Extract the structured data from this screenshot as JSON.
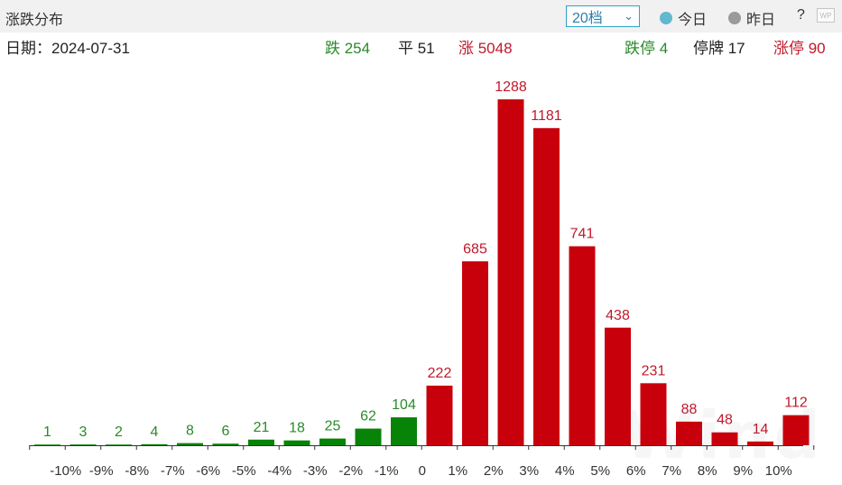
{
  "header": {
    "title": "涨跌分布",
    "grade_select": "20档",
    "radio_today": "今日",
    "radio_yesterday": "昨日",
    "help": "?",
    "wp_badge": "WP"
  },
  "stats": {
    "date": "日期：2024-07-31",
    "down": "跌 254",
    "flat": "平 51",
    "up": "涨 5048",
    "limit_down": "跌停 4",
    "halted": "停牌 17",
    "limit_up": "涨停 90"
  },
  "watermark": "Wind",
  "colors": {
    "down": "#078307",
    "up": "#c8000b",
    "down_label": "#2a8a2a",
    "up_label": "#c0192a"
  },
  "chart_data": {
    "type": "bar",
    "categories": [
      "-10%",
      "-9%",
      "-8%",
      "-7%",
      "-6%",
      "-5%",
      "-4%",
      "-3%",
      "-2%",
      "-1%",
      "0",
      "1%",
      "2%",
      "3%",
      "4%",
      "5%",
      "6%",
      "7%",
      "8%",
      "9%",
      "10%"
    ],
    "bars": [
      {
        "value": 1,
        "label": "1",
        "direction": "down"
      },
      {
        "value": 3,
        "label": "3",
        "direction": "down"
      },
      {
        "value": 2,
        "label": "2",
        "direction": "down"
      },
      {
        "value": 4,
        "label": "4",
        "direction": "down"
      },
      {
        "value": 8,
        "label": "8",
        "direction": "down"
      },
      {
        "value": 6,
        "label": "6",
        "direction": "down"
      },
      {
        "value": 21,
        "label": "21",
        "direction": "down"
      },
      {
        "value": 18,
        "label": "18",
        "direction": "down"
      },
      {
        "value": 25,
        "label": "25",
        "direction": "down"
      },
      {
        "value": 62,
        "label": "62",
        "direction": "down"
      },
      {
        "value": 104,
        "label": "104",
        "direction": "down"
      },
      {
        "value": 222,
        "label": "222",
        "direction": "up"
      },
      {
        "value": 685,
        "label": "685",
        "direction": "up"
      },
      {
        "value": 1288,
        "label": "1288",
        "direction": "up"
      },
      {
        "value": 1181,
        "label": "1181",
        "direction": "up"
      },
      {
        "value": 741,
        "label": "741",
        "direction": "up"
      },
      {
        "value": 438,
        "label": "438",
        "direction": "up"
      },
      {
        "value": 231,
        "label": "231",
        "direction": "up"
      },
      {
        "value": 88,
        "label": "88",
        "direction": "up"
      },
      {
        "value": 48,
        "label": "48",
        "direction": "up"
      },
      {
        "value": 14,
        "label": "14",
        "direction": "up"
      },
      {
        "value": 112,
        "label": "112",
        "direction": "up"
      }
    ],
    "ymax": 1288,
    "grid": false,
    "legend": "none"
  }
}
